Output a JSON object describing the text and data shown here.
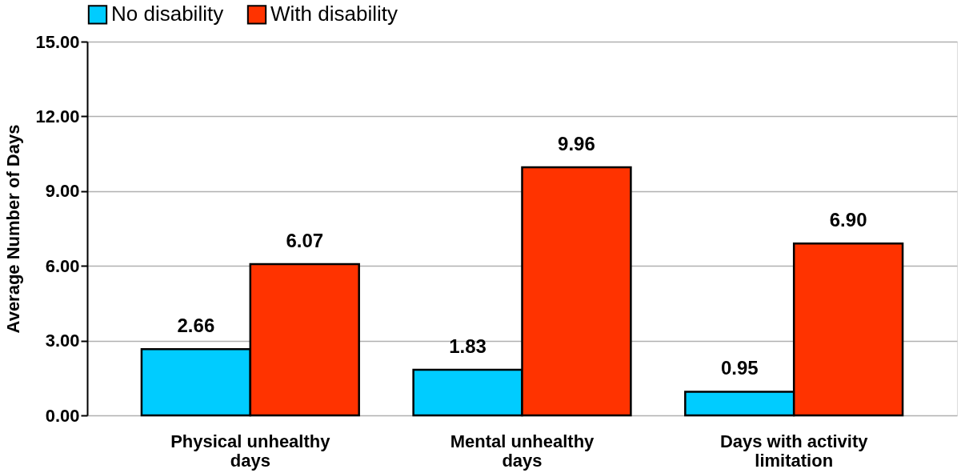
{
  "chart_data": {
    "type": "bar",
    "ylabel": "Average Number of Days",
    "categories": [
      "Physical unhealthy days",
      "Mental unhealthy days",
      "Days with activity limitation"
    ],
    "series": [
      {
        "name": "No disability",
        "color": "#00ccff",
        "values": [
          2.66,
          1.83,
          0.95
        ],
        "value_labels": [
          "2.66",
          "1.83",
          "0.95"
        ]
      },
      {
        "name": "With disability",
        "color": "#ff3300",
        "values": [
          6.07,
          9.96,
          6.9
        ],
        "value_labels": [
          "6.07",
          "9.96",
          "6.90"
        ]
      }
    ],
    "ylim": [
      0,
      15
    ],
    "yticks": [
      {
        "value": 0,
        "label": "0.00"
      },
      {
        "value": 3,
        "label": "3.00"
      },
      {
        "value": 6,
        "label": "6.00"
      },
      {
        "value": 9,
        "label": "9.00"
      },
      {
        "value": 12,
        "label": "12.00"
      },
      {
        "value": 15,
        "label": "15.00"
      }
    ],
    "grid": "y",
    "legend": "top"
  }
}
